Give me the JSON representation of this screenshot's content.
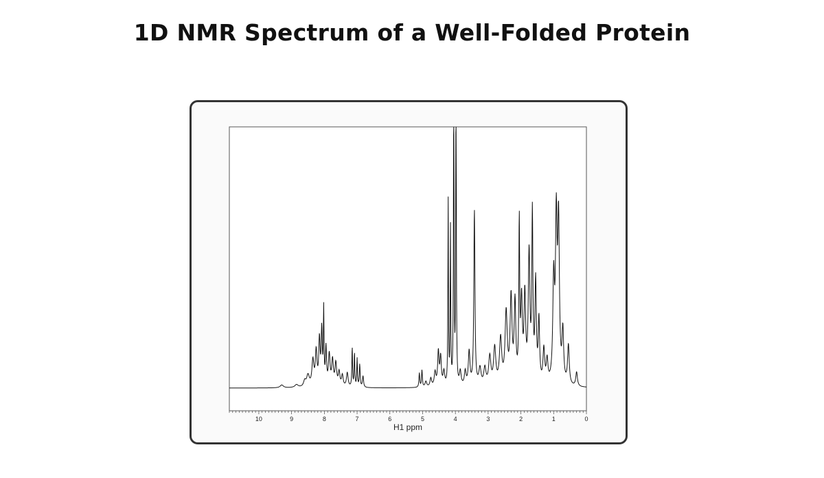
{
  "page": {
    "title": "1D NMR Spectrum of a Well-Folded Protein"
  },
  "chart_data": {
    "type": "line",
    "title": "1D NMR Spectrum of a Well-Folded Protein",
    "xlabel": "H1 ppm",
    "ylabel": "",
    "xlim": [
      10.9,
      0
    ],
    "x_reversed": true,
    "ylim": [
      0,
      1
    ],
    "grid": false,
    "line_color": "#111111",
    "xticks": [
      10,
      9,
      8,
      7,
      6,
      5,
      4,
      3,
      2,
      1,
      0
    ],
    "xtick_labels": [
      "10",
      "9",
      "8",
      "7",
      "6",
      "5",
      "4",
      "3",
      "2",
      "1",
      "0"
    ],
    "baseline": 0.08,
    "peaks": [
      {
        "x": 9.3,
        "height": 0.01,
        "width": 0.06
      },
      {
        "x": 8.85,
        "height": 0.01,
        "width": 0.06
      },
      {
        "x": 8.6,
        "height": 0.02,
        "width": 0.04
      },
      {
        "x": 8.5,
        "height": 0.04,
        "width": 0.05
      },
      {
        "x": 8.35,
        "height": 0.09,
        "width": 0.035
      },
      {
        "x": 8.25,
        "height": 0.12,
        "width": 0.03
      },
      {
        "x": 8.15,
        "height": 0.16,
        "width": 0.025
      },
      {
        "x": 8.08,
        "height": 0.19,
        "width": 0.02
      },
      {
        "x": 8.02,
        "height": 0.26,
        "width": 0.012
      },
      {
        "x": 7.95,
        "height": 0.13,
        "width": 0.02
      },
      {
        "x": 7.85,
        "height": 0.11,
        "width": 0.03
      },
      {
        "x": 7.75,
        "height": 0.09,
        "width": 0.03
      },
      {
        "x": 7.65,
        "height": 0.08,
        "width": 0.03
      },
      {
        "x": 7.55,
        "height": 0.05,
        "width": 0.03
      },
      {
        "x": 7.45,
        "height": 0.04,
        "width": 0.03
      },
      {
        "x": 7.3,
        "height": 0.05,
        "width": 0.03
      },
      {
        "x": 7.15,
        "height": 0.14,
        "width": 0.012
      },
      {
        "x": 7.08,
        "height": 0.12,
        "width": 0.012
      },
      {
        "x": 7.0,
        "height": 0.1,
        "width": 0.012
      },
      {
        "x": 6.92,
        "height": 0.08,
        "width": 0.015
      },
      {
        "x": 6.82,
        "height": 0.04,
        "width": 0.02
      },
      {
        "x": 5.1,
        "height": 0.05,
        "width": 0.015
      },
      {
        "x": 5.02,
        "height": 0.06,
        "width": 0.015
      },
      {
        "x": 4.9,
        "height": 0.02,
        "width": 0.03
      },
      {
        "x": 4.75,
        "height": 0.03,
        "width": 0.03
      },
      {
        "x": 4.62,
        "height": 0.05,
        "width": 0.03
      },
      {
        "x": 4.52,
        "height": 0.12,
        "width": 0.025
      },
      {
        "x": 4.45,
        "height": 0.1,
        "width": 0.025
      },
      {
        "x": 4.35,
        "height": 0.05,
        "width": 0.03
      },
      {
        "x": 4.22,
        "height": 0.65,
        "width": 0.01
      },
      {
        "x": 4.15,
        "height": 0.55,
        "width": 0.01
      },
      {
        "x": 4.05,
        "height": 1.2,
        "width": 0.01
      },
      {
        "x": 3.98,
        "height": 1.2,
        "width": 0.01
      },
      {
        "x": 3.85,
        "height": 0.05,
        "width": 0.03
      },
      {
        "x": 3.7,
        "height": 0.05,
        "width": 0.03
      },
      {
        "x": 3.58,
        "height": 0.12,
        "width": 0.03
      },
      {
        "x": 3.42,
        "height": 0.62,
        "width": 0.02
      },
      {
        "x": 3.25,
        "height": 0.06,
        "width": 0.04
      },
      {
        "x": 3.1,
        "height": 0.06,
        "width": 0.04
      },
      {
        "x": 2.95,
        "height": 0.1,
        "width": 0.04
      },
      {
        "x": 2.8,
        "height": 0.13,
        "width": 0.04
      },
      {
        "x": 2.62,
        "height": 0.16,
        "width": 0.04
      },
      {
        "x": 2.45,
        "height": 0.25,
        "width": 0.04
      },
      {
        "x": 2.3,
        "height": 0.3,
        "width": 0.035
      },
      {
        "x": 2.18,
        "height": 0.28,
        "width": 0.03
      },
      {
        "x": 2.05,
        "height": 0.55,
        "width": 0.015
      },
      {
        "x": 1.98,
        "height": 0.28,
        "width": 0.03
      },
      {
        "x": 1.88,
        "height": 0.3,
        "width": 0.03
      },
      {
        "x": 1.75,
        "height": 0.45,
        "width": 0.03
      },
      {
        "x": 1.65,
        "height": 0.58,
        "width": 0.02
      },
      {
        "x": 1.55,
        "height": 0.35,
        "width": 0.025
      },
      {
        "x": 1.45,
        "height": 0.22,
        "width": 0.025
      },
      {
        "x": 1.3,
        "height": 0.12,
        "width": 0.03
      },
      {
        "x": 1.2,
        "height": 0.08,
        "width": 0.03
      },
      {
        "x": 1.0,
        "height": 0.35,
        "width": 0.03
      },
      {
        "x": 0.92,
        "height": 0.55,
        "width": 0.03
      },
      {
        "x": 0.85,
        "height": 0.55,
        "width": 0.03
      },
      {
        "x": 0.72,
        "height": 0.18,
        "width": 0.03
      },
      {
        "x": 0.55,
        "height": 0.14,
        "width": 0.03
      },
      {
        "x": 0.3,
        "height": 0.05,
        "width": 0.03
      }
    ]
  }
}
